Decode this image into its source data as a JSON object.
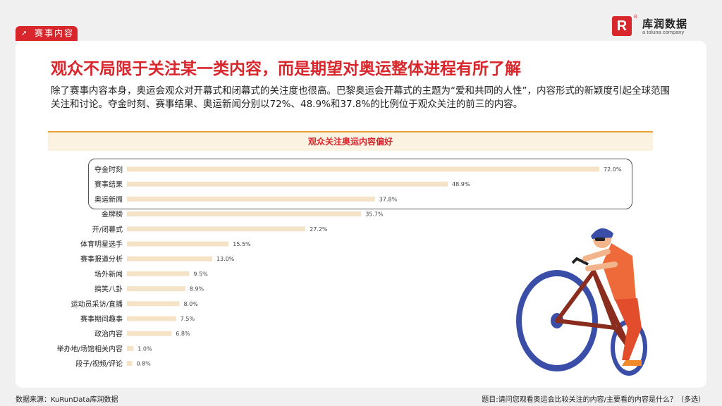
{
  "section_tag": "赛事内容",
  "logo": {
    "mark": "R",
    "name": "库润数据",
    "tagline": "a toluna company"
  },
  "title": "观众不局限于关注某一类内容，而是期望对奥运整体进程有所了解",
  "description": "除了赛事内容本身，奥运会观众对开幕式和闭幕式的关注度也很高。巴黎奥运会开幕式的主题为“爱和共同的人性”，内容形式的新颖度引起全球范围关注和讨论。夺金时刻、赛事结果、奥运新闻分别以72%、48.9%和37.8%的比例位于观众关注的前三的内容。",
  "chart_data": {
    "type": "bar",
    "orientation": "horizontal",
    "title": "观众关注奥运内容偏好",
    "categories": [
      "夺金时刻",
      "赛事结果",
      "奥运新闻",
      "金牌榜",
      "开/闭幕式",
      "体育明星选手",
      "赛事报道分析",
      "场外新闻",
      "搞笑八卦",
      "运动员采访/直播",
      "赛事期间趣事",
      "政治内容",
      "举办地/场馆相关内容",
      "段子/视频/评论"
    ],
    "values": [
      72.0,
      48.9,
      37.8,
      35.7,
      27.2,
      15.5,
      13.0,
      9.5,
      8.9,
      8.0,
      7.5,
      6.8,
      1.0,
      0.8
    ],
    "value_labels": [
      "72.0%",
      "48.9%",
      "37.8%",
      "35.7%",
      "27.2%",
      "15.5%",
      "13.0%",
      "9.5%",
      "8.9%",
      "8.0%",
      "7.5%",
      "6.8%",
      "1.0%",
      "0.8%"
    ],
    "highlighted_top": 3,
    "bar_color": "#f5e3c8",
    "xlim": [
      0,
      80
    ]
  },
  "colors": {
    "accent": "#d8262c",
    "header_line": "#e8a33b",
    "bar": "#f5e3c8"
  },
  "footer": {
    "source": "数据来源：KuRunData库润数据",
    "question": "题目:请问您观看奥运会比较关注的内容/主要看的内容是什么？（多选）"
  }
}
